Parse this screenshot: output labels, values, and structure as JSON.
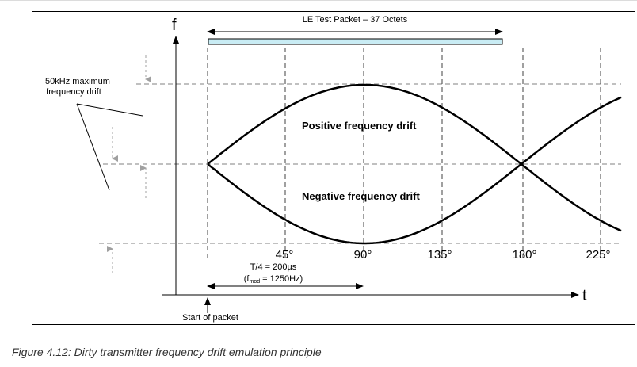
{
  "diagram": {
    "packet_label": "LE Test Packet – 37 Octets",
    "y_axis_label": "f",
    "x_axis_label": "t",
    "drift_note_line1": "50kHz maximum",
    "drift_note_line2": "frequency drift",
    "positive_label": "Positive frequency drift",
    "negative_label": "Negative frequency drift",
    "angle_labels": [
      "45°",
      "90°",
      "135°",
      "180°",
      "225°"
    ],
    "period_label": "T/4 = 200µs",
    "fmod_prefix": "(f",
    "fmod_sub": "mod",
    "fmod_suffix": " = 1250Hz)",
    "start_label": "Start of packet",
    "colors": {
      "packet_bar": "#c9ecf4",
      "line": "#000000",
      "dash": "#808080",
      "arrow_gray": "#a0a0a0"
    }
  },
  "caption": "Figure 4.12: Dirty transmitter frequency drift emulation principle"
}
